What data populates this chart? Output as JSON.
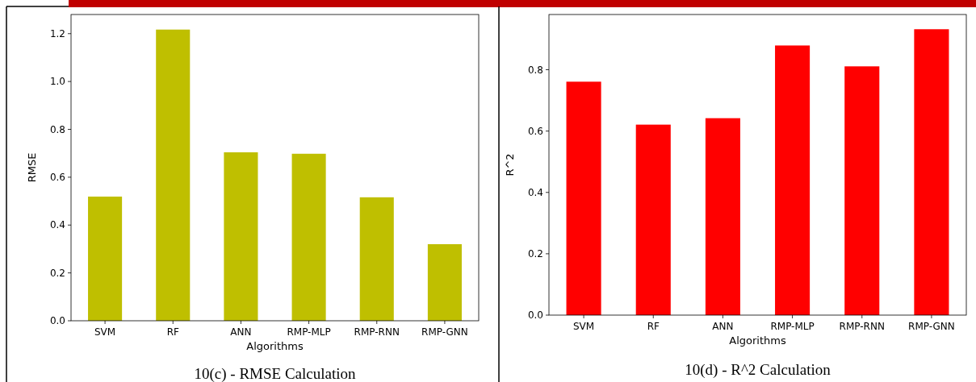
{
  "chart_data": [
    {
      "type": "bar",
      "title": "10(c) - RMSE Calculation",
      "xlabel": "Algorithms",
      "ylabel": "RMSE",
      "categories": [
        "SVM",
        "RF",
        "ANN",
        "RMP-MLP",
        "RMP-RNN",
        "RMP-GNN"
      ],
      "values": [
        0.519,
        1.217,
        0.704,
        0.698,
        0.516,
        0.32
      ],
      "color": "#bfbf00",
      "ylim": [
        0,
        1.28
      ],
      "yticks": [
        {
          "value": 0,
          "label": "0.0"
        },
        {
          "value": 0.2,
          "label": "0.2"
        },
        {
          "value": 0.4,
          "label": "0.4"
        },
        {
          "value": 0.6,
          "label": "0.6"
        },
        {
          "value": 0.8,
          "label": "0.8"
        },
        {
          "value": 1,
          "label": "1.0"
        },
        {
          "value": 1.2,
          "label": "1.2"
        }
      ],
      "grid": false
    },
    {
      "type": "bar",
      "title": "10(d) - R^2 Calculation",
      "xlabel": "Algorithms",
      "ylabel": "R^2",
      "categories": [
        "SVM",
        "RF",
        "ANN",
        "RMP-MLP",
        "RMP-RNN",
        "RMP-GNN"
      ],
      "values": [
        0.761,
        0.621,
        0.642,
        0.879,
        0.811,
        0.932
      ],
      "color": "#ff0000",
      "ylim": [
        0,
        0.98
      ],
      "yticks": [
        {
          "value": 0,
          "label": "0.0"
        },
        {
          "value": 0.2,
          "label": "0.2"
        },
        {
          "value": 0.4,
          "label": "0.4"
        },
        {
          "value": 0.6,
          "label": "0.6"
        },
        {
          "value": 0.8,
          "label": "0.8"
        }
      ],
      "grid": false
    }
  ]
}
